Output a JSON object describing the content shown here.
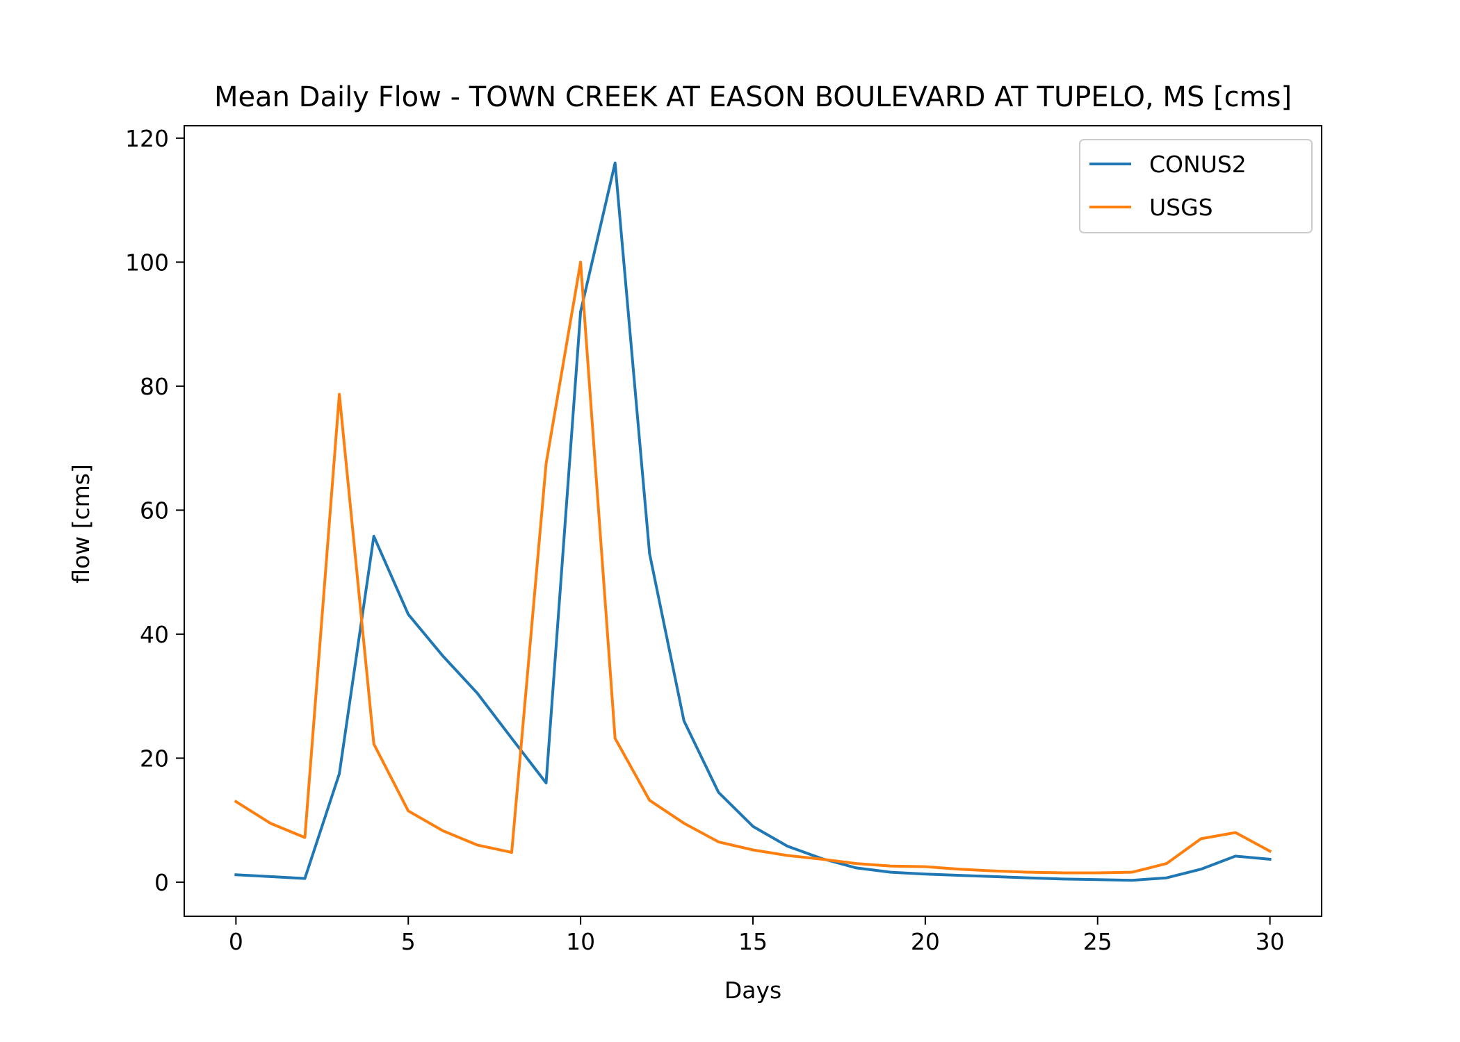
{
  "chart_data": {
    "type": "line",
    "title": "Mean Daily Flow - TOWN CREEK AT EASON BOULEVARD AT TUPELO, MS [cms]",
    "xlabel": "Days",
    "ylabel": "flow [cms]",
    "xlim": [
      -1.5,
      31.5
    ],
    "ylim": [
      -5.5,
      122
    ],
    "xticks": [
      0,
      5,
      10,
      15,
      20,
      25,
      30
    ],
    "yticks": [
      0,
      20,
      40,
      60,
      80,
      100,
      120
    ],
    "grid": false,
    "legend": "top-right",
    "x": [
      0,
      1,
      2,
      3,
      4,
      5,
      6,
      7,
      8,
      9,
      10,
      11,
      12,
      13,
      14,
      15,
      16,
      17,
      18,
      19,
      20,
      21,
      22,
      23,
      24,
      25,
      26,
      27,
      28,
      29,
      30
    ],
    "series": [
      {
        "name": "CONUS2",
        "color": "#1f77b4",
        "values": [
          1.2,
          0.9,
          0.6,
          17.5,
          55.8,
          43.2,
          36.5,
          30.5,
          23.2,
          16.0,
          92.0,
          116.0,
          53.0,
          26.0,
          14.5,
          9.0,
          5.8,
          3.8,
          2.3,
          1.6,
          1.3,
          1.1,
          0.9,
          0.7,
          0.5,
          0.4,
          0.3,
          0.7,
          2.1,
          4.2,
          3.7
        ]
      },
      {
        "name": "USGS",
        "color": "#ff7f0e",
        "values": [
          13.0,
          9.5,
          7.2,
          78.7,
          22.3,
          11.5,
          8.3,
          6.0,
          4.8,
          67.5,
          100.0,
          23.2,
          13.2,
          9.5,
          6.5,
          5.2,
          4.3,
          3.7,
          3.0,
          2.6,
          2.5,
          2.1,
          1.8,
          1.6,
          1.5,
          1.5,
          1.6,
          3.0,
          7.0,
          8.0,
          5.0
        ]
      }
    ]
  }
}
